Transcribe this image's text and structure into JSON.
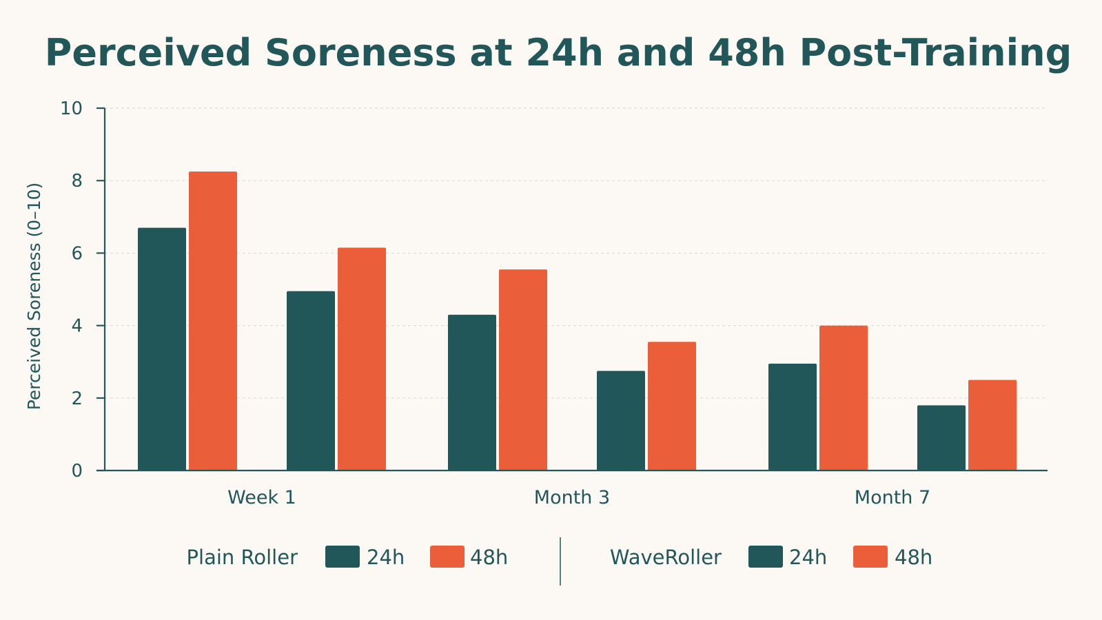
{
  "chart_data": {
    "type": "bar",
    "title": "Perceived Soreness at 24h and 48h Post-Training",
    "ylabel": "Perceived Soreness (0–10)",
    "xlabel": "",
    "ylim": [
      0,
      10
    ],
    "yticks": [
      "0",
      "2",
      "4",
      "6",
      "8",
      "10"
    ],
    "grid": true,
    "legend_position": "bottom",
    "categories": [
      "Week 1",
      "Month 3",
      "Month 7"
    ],
    "groups": [
      "Plain Roller",
      "WaveRoller"
    ],
    "series": [
      {
        "name": "24h",
        "group": "Plain Roller",
        "values": [
          6.7,
          4.3,
          2.95
        ],
        "color": "#22575a"
      },
      {
        "name": "48h",
        "group": "Plain Roller",
        "values": [
          8.25,
          5.55,
          4.0
        ],
        "color": "#ea5f3a"
      },
      {
        "name": "24h",
        "group": "WaveRoller",
        "values": [
          4.95,
          2.75,
          1.8
        ],
        "color": "#22575a"
      },
      {
        "name": "48h",
        "group": "WaveRoller",
        "values": [
          6.15,
          3.55,
          2.5
        ],
        "color": "#ea5f3a"
      }
    ]
  },
  "legend": {
    "groups": [
      {
        "label": "Plain Roller",
        "items": [
          {
            "label": "24h",
            "color": "#22575a"
          },
          {
            "label": "48h",
            "color": "#ea5f3a"
          }
        ]
      },
      {
        "label": "WaveRoller",
        "items": [
          {
            "label": "24h",
            "color": "#22575a"
          },
          {
            "label": "48h",
            "color": "#ea5f3a"
          }
        ]
      }
    ]
  },
  "colors": {
    "text": "#22575a",
    "background": "#fcf8f3",
    "grid": "#d9d5cf"
  }
}
